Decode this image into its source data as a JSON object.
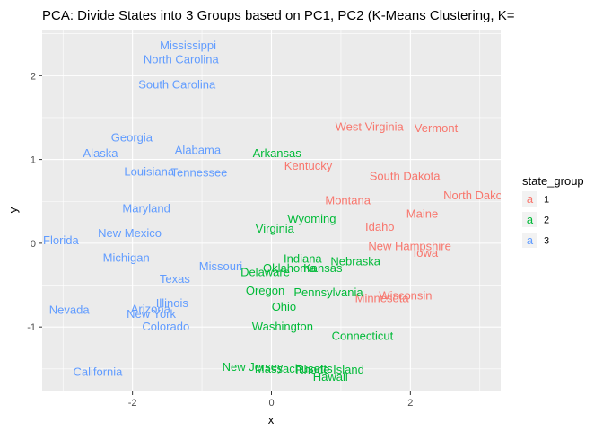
{
  "chart_data": {
    "type": "scatter",
    "title": "PCA: Divide States into 3 Groups based on PC1, PC2 (K-Means Clustering, K=",
    "xlabel": "x",
    "ylabel": "y",
    "xlim": [
      -3.3,
      3.3
    ],
    "ylim": [
      -1.77,
      2.55
    ],
    "x_ticks": [
      -2,
      0,
      2
    ],
    "y_ticks": [
      -1,
      0,
      1,
      2
    ],
    "x_tick_labels": [
      "-2",
      "0",
      "2"
    ],
    "y_tick_labels": [
      "-1",
      "0",
      "1",
      "2"
    ],
    "grid": true,
    "legend": {
      "title": "state_group",
      "position": "right",
      "glyph": "a",
      "entries": [
        {
          "label": "1",
          "color": "#F8766D"
        },
        {
          "label": "2",
          "color": "#00BA38"
        },
        {
          "label": "3",
          "color": "#619CFF"
        }
      ]
    },
    "series": [
      {
        "name": "1",
        "color": "#F8766D",
        "points": [
          {
            "label": "West Virginia",
            "x": 1.41,
            "y": 1.4
          },
          {
            "label": "Vermont",
            "x": 2.37,
            "y": 1.38
          },
          {
            "label": "Kentucky",
            "x": 0.53,
            "y": 0.93
          },
          {
            "label": "South Dakota",
            "x": 1.92,
            "y": 0.81
          },
          {
            "label": "North Dakota",
            "x": 2.97,
            "y": 0.58
          },
          {
            "label": "Montana",
            "x": 1.1,
            "y": 0.52
          },
          {
            "label": "Maine",
            "x": 2.17,
            "y": 0.36
          },
          {
            "label": "Idaho",
            "x": 1.56,
            "y": 0.2
          },
          {
            "label": "New Hampshire",
            "x": 1.99,
            "y": -0.03
          },
          {
            "label": "Iowa",
            "x": 2.22,
            "y": -0.11
          },
          {
            "label": "Wisconsin",
            "x": 1.93,
            "y": -0.62
          },
          {
            "label": "Minnesota",
            "x": 1.59,
            "y": -0.65
          }
        ]
      },
      {
        "name": "2",
        "color": "#00BA38",
        "points": [
          {
            "label": "Arkansas",
            "x": 0.08,
            "y": 1.08
          },
          {
            "label": "Wyoming",
            "x": 0.58,
            "y": 0.3
          },
          {
            "label": "Virginia",
            "x": 0.05,
            "y": 0.18
          },
          {
            "label": "Indiana",
            "x": 0.45,
            "y": -0.18
          },
          {
            "label": "Nebraska",
            "x": 1.21,
            "y": -0.21
          },
          {
            "label": "Oklahoma",
            "x": 0.26,
            "y": -0.29
          },
          {
            "label": "Kansas",
            "x": 0.74,
            "y": -0.29
          },
          {
            "label": "Delaware",
            "x": -0.09,
            "y": -0.34
          },
          {
            "label": "Oregon",
            "x": -0.09,
            "y": -0.56
          },
          {
            "label": "Pennsylvania",
            "x": 0.82,
            "y": -0.58
          },
          {
            "label": "Ohio",
            "x": 0.18,
            "y": -0.75
          },
          {
            "label": "Washington",
            "x": 0.16,
            "y": -0.99
          },
          {
            "label": "Connecticut",
            "x": 1.31,
            "y": -1.1
          },
          {
            "label": "New Jersey",
            "x": -0.27,
            "y": -1.47
          },
          {
            "label": "Massachusetts",
            "x": 0.32,
            "y": -1.49
          },
          {
            "label": "Rhode Island",
            "x": 0.84,
            "y": -1.5
          },
          {
            "label": "Hawaii",
            "x": 0.85,
            "y": -1.59
          }
        ]
      },
      {
        "name": "3",
        "color": "#619CFF",
        "points": [
          {
            "label": "Mississippi",
            "x": -1.2,
            "y": 2.37
          },
          {
            "label": "North Carolina",
            "x": -1.3,
            "y": 2.2
          },
          {
            "label": "South Carolina",
            "x": -1.36,
            "y": 1.9
          },
          {
            "label": "Georgia",
            "x": -2.01,
            "y": 1.27
          },
          {
            "label": "Alabama",
            "x": -1.06,
            "y": 1.12
          },
          {
            "label": "Alaska",
            "x": -2.46,
            "y": 1.08
          },
          {
            "label": "Louisiana",
            "x": -1.76,
            "y": 0.86
          },
          {
            "label": "Tennessee",
            "x": -1.04,
            "y": 0.85
          },
          {
            "label": "Maryland",
            "x": -1.8,
            "y": 0.42
          },
          {
            "label": "New Mexico",
            "x": -2.04,
            "y": 0.13
          },
          {
            "label": "Florida",
            "x": -3.03,
            "y": 0.04
          },
          {
            "label": "Michigan",
            "x": -2.09,
            "y": -0.17
          },
          {
            "label": "Missouri",
            "x": -0.73,
            "y": -0.27
          },
          {
            "label": "Texas",
            "x": -1.39,
            "y": -0.42
          },
          {
            "label": "Illinois",
            "x": -1.43,
            "y": -0.71
          },
          {
            "label": "Nevada",
            "x": -2.91,
            "y": -0.79
          },
          {
            "label": "Arizona",
            "x": -1.74,
            "y": -0.78
          },
          {
            "label": "New York",
            "x": -1.73,
            "y": -0.84
          },
          {
            "label": "Colorado",
            "x": -1.52,
            "y": -0.99
          },
          {
            "label": "California",
            "x": -2.5,
            "y": -1.53
          }
        ]
      }
    ]
  }
}
